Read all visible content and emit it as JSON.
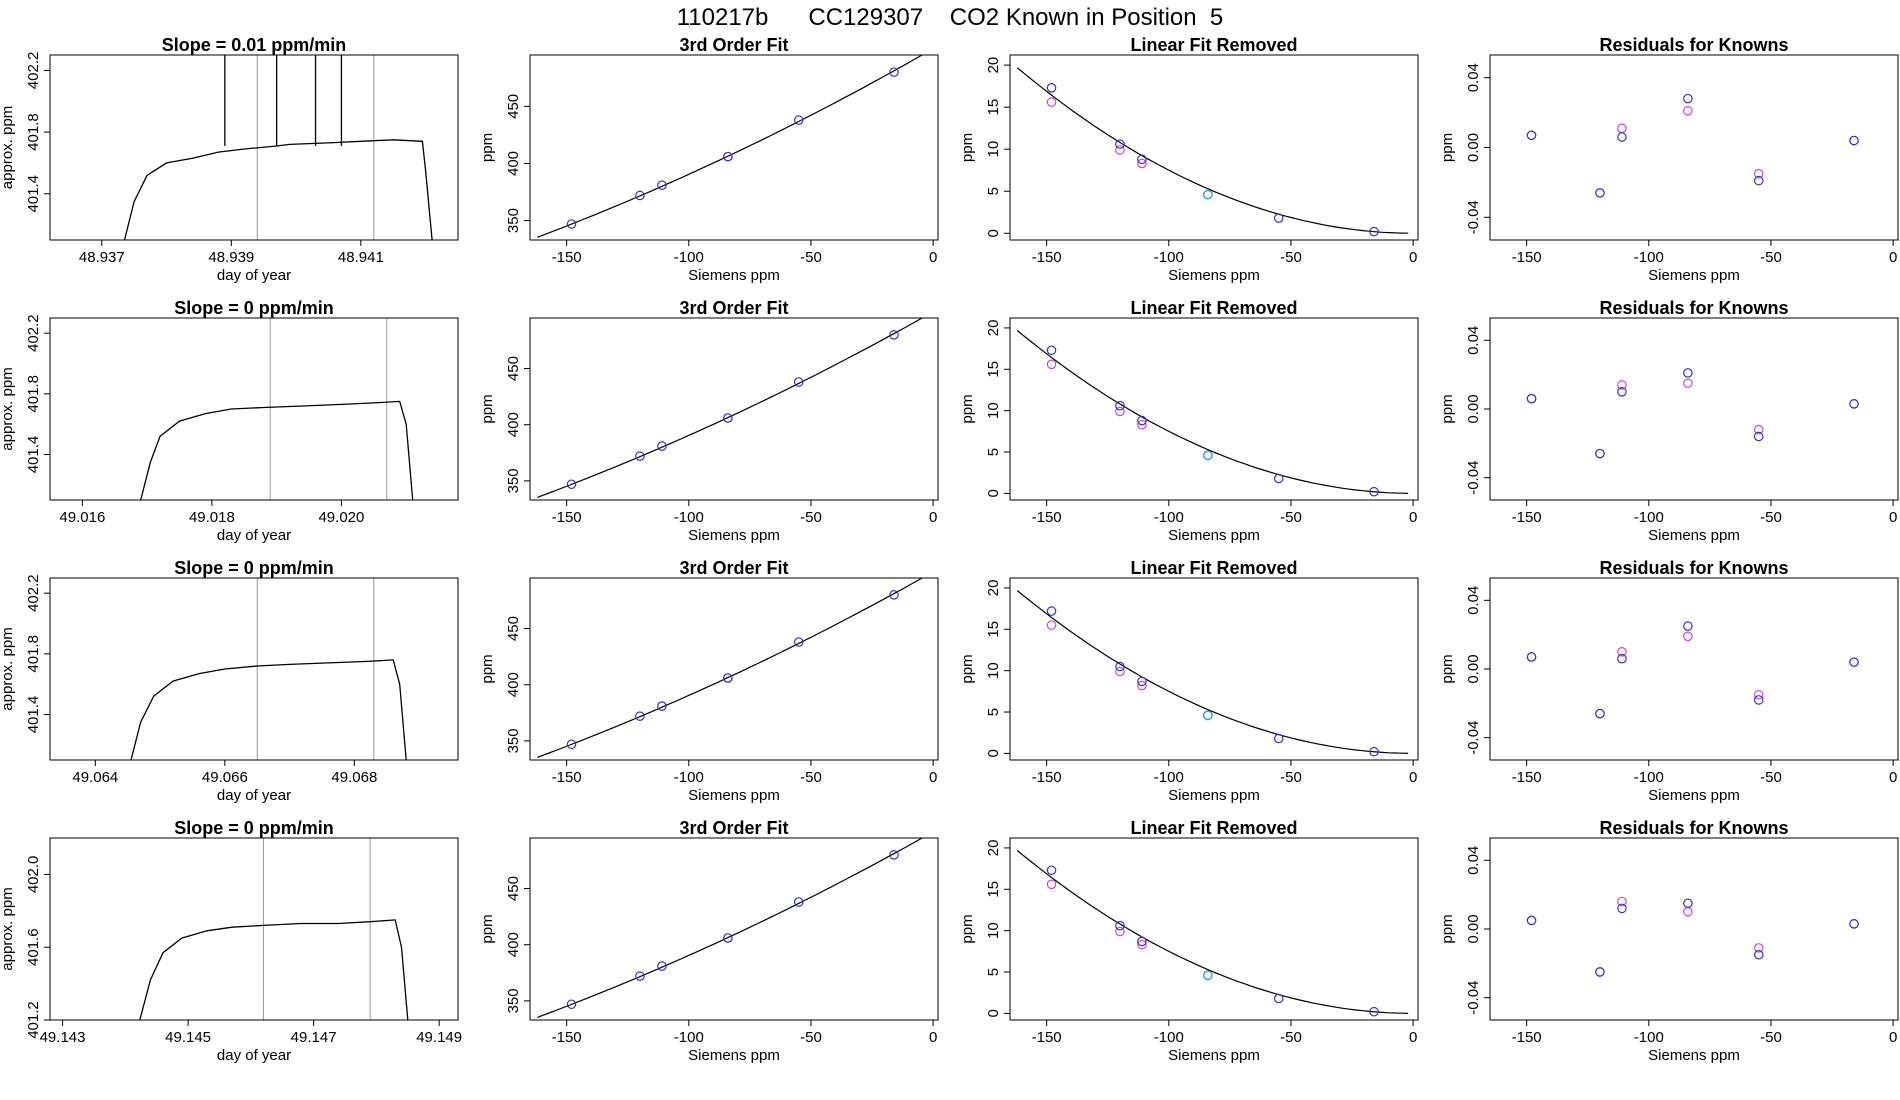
{
  "header": {
    "title": "110217b      CC129307    CO2 Known in Position  5"
  },
  "colors": {
    "known_fit": "#3333cc",
    "known_alt": "#cc44dd",
    "highlight": "#33aadd",
    "ref": "#999999",
    "trace": "#000000",
    "spike": "#cc2222"
  },
  "chart_data": [
    {
      "type": "line",
      "row": 1,
      "panel": "time",
      "title": "Slope =  0.01  ppm/min",
      "xlabel": "day of year",
      "ylabel": "approx. ppm",
      "xlim": [
        48.9362,
        48.9425
      ],
      "ylim": [
        401.1,
        402.3
      ],
      "xticks": [
        48.937,
        48.939,
        48.941
      ],
      "xtick_labels": [
        "48.937",
        "48.939",
        "48.941"
      ],
      "yticks": [
        401.4,
        401.8,
        402.2
      ],
      "ytick_labels": [
        "401.4",
        "401.8",
        "402.2"
      ],
      "vlines": [
        48.9394,
        48.9412
      ],
      "series": [
        {
          "name": "approx ppm",
          "x": [
            48.93735,
            48.9375,
            48.9377,
            48.938,
            48.9384,
            48.9388,
            48.9392,
            48.9397,
            48.9399,
            48.9405,
            48.941,
            48.9415,
            48.94195,
            48.942,
            48.9421
          ],
          "y": [
            401.1,
            401.35,
            401.52,
            401.6,
            401.63,
            401.67,
            401.69,
            401.71,
            401.72,
            401.73,
            401.74,
            401.75,
            401.74,
            401.55,
            401.1
          ]
        }
      ],
      "spikes": [
        48.9389,
        48.9397,
        48.9403,
        48.9407
      ]
    },
    {
      "type": "line",
      "row": 2,
      "panel": "time",
      "title": "Slope =  0  ppm/min",
      "xlabel": "day of year",
      "ylabel": "approx. ppm",
      "xlim": [
        49.0155,
        49.0218
      ],
      "ylim": [
        401.1,
        402.3
      ],
      "xticks": [
        49.016,
        49.018,
        49.02
      ],
      "xtick_labels": [
        "49.016",
        "49.018",
        "49.020"
      ],
      "yticks": [
        401.4,
        401.8,
        402.2
      ],
      "ytick_labels": [
        "401.4",
        "401.8",
        "402.2"
      ],
      "vlines": [
        49.0189,
        49.0207
      ],
      "series": [
        {
          "name": "approx ppm",
          "x": [
            49.0169,
            49.01705,
            49.0172,
            49.0175,
            49.0179,
            49.0183,
            49.0188,
            49.0194,
            49.02,
            49.0205,
            49.0209,
            49.021,
            49.0211
          ],
          "y": [
            401.1,
            401.35,
            401.52,
            401.62,
            401.67,
            401.7,
            401.71,
            401.72,
            401.73,
            401.74,
            401.75,
            401.6,
            401.1
          ]
        }
      ],
      "spikes": []
    },
    {
      "type": "line",
      "row": 3,
      "panel": "time",
      "title": "Slope =  0  ppm/min",
      "xlabel": "day of year",
      "ylabel": "approx. ppm",
      "xlim": [
        49.0633,
        49.0696
      ],
      "ylim": [
        401.1,
        402.3
      ],
      "xticks": [
        49.064,
        49.066,
        49.068
      ],
      "xtick_labels": [
        "49.064",
        "49.066",
        "49.068"
      ],
      "yticks": [
        401.4,
        401.8,
        402.2
      ],
      "ytick_labels": [
        "401.4",
        "401.8",
        "402.2"
      ],
      "vlines": [
        49.0665,
        49.0683
      ],
      "series": [
        {
          "name": "approx ppm",
          "x": [
            49.06455,
            49.0647,
            49.0649,
            49.0652,
            49.0656,
            49.066,
            49.0665,
            49.067,
            49.0676,
            49.0682,
            49.0686,
            49.0687,
            49.0688
          ],
          "y": [
            401.1,
            401.35,
            401.52,
            401.62,
            401.67,
            401.7,
            401.72,
            401.73,
            401.74,
            401.75,
            401.76,
            401.6,
            401.1
          ]
        }
      ],
      "spikes": []
    },
    {
      "type": "line",
      "row": 4,
      "panel": "time",
      "title": "Slope =  0  ppm/min",
      "xlabel": "day of year",
      "ylabel": "approx. ppm",
      "xlim": [
        49.1428,
        49.1493
      ],
      "ylim": [
        401.2,
        402.2
      ],
      "xticks": [
        49.143,
        49.145,
        49.147,
        49.149
      ],
      "xtick_labels": [
        "49.143",
        "49.145",
        "49.147",
        "49.149"
      ],
      "yticks": [
        401.2,
        401.6,
        402.0
      ],
      "ytick_labels": [
        "401.2",
        "401.6",
        "402.0"
      ],
      "vlines": [
        49.1462,
        49.1479
      ],
      "series": [
        {
          "name": "approx ppm",
          "x": [
            49.14423,
            49.1444,
            49.1446,
            49.1449,
            49.1453,
            49.1457,
            49.1462,
            49.1468,
            49.1474,
            49.1479,
            49.1483,
            49.1484,
            49.1485
          ],
          "y": [
            401.2,
            401.42,
            401.57,
            401.65,
            401.69,
            401.71,
            401.72,
            401.73,
            401.73,
            401.74,
            401.75,
            401.6,
            401.2
          ]
        }
      ],
      "spikes": []
    },
    {
      "type": "scatter",
      "row": 1,
      "panel": "fit",
      "title": "3rd Order Fit",
      "xlabel": "Siemens ppm",
      "ylabel": "ppm",
      "xlim": [
        -165,
        2
      ],
      "ylim": [
        333,
        495
      ],
      "xticks": [
        -150,
        -100,
        -50,
        0
      ],
      "xtick_labels": [
        "-150",
        "-100",
        "-50",
        "0"
      ],
      "yticks": [
        350,
        400,
        450
      ],
      "ytick_labels": [
        "350",
        "400",
        "450"
      ],
      "points": {
        "x": [
          -148,
          -120,
          -111,
          -84,
          -55,
          -16
        ],
        "y": [
          347,
          372,
          381,
          406,
          438,
          480
        ]
      },
      "alt_points": {
        "x": [
          -84
        ],
        "y": [
          406
        ]
      },
      "curve": {
        "x0": -162,
        "x1": -2,
        "a": 500.5,
        "b": 1.23,
        "c": 0.0013
      }
    },
    {
      "type": "scatter",
      "row": 2,
      "panel": "fit",
      "title": "3rd Order Fit",
      "xlabel": "Siemens ppm",
      "ylabel": "ppm",
      "xlim": [
        -165,
        2
      ],
      "ylim": [
        333,
        495
      ],
      "xticks": [
        -150,
        -100,
        -50,
        0
      ],
      "xtick_labels": [
        "-150",
        "-100",
        "-50",
        "0"
      ],
      "yticks": [
        350,
        400,
        450
      ],
      "ytick_labels": [
        "350",
        "400",
        "450"
      ],
      "points": {
        "x": [
          -148,
          -120,
          -111,
          -84,
          -55,
          -16
        ],
        "y": [
          347,
          372,
          381,
          406,
          438,
          480
        ]
      },
      "alt_points": {
        "x": [
          -84
        ],
        "y": [
          406
        ]
      },
      "curve": {
        "x0": -162,
        "x1": -2,
        "a": 500.5,
        "b": 1.23,
        "c": 0.0013
      }
    },
    {
      "type": "scatter",
      "row": 3,
      "panel": "fit",
      "title": "3rd Order Fit",
      "xlabel": "Siemens ppm",
      "ylabel": "ppm",
      "xlim": [
        -165,
        2
      ],
      "ylim": [
        333,
        495
      ],
      "xticks": [
        -150,
        -100,
        -50,
        0
      ],
      "xtick_labels": [
        "-150",
        "-100",
        "-50",
        "0"
      ],
      "yticks": [
        350,
        400,
        450
      ],
      "ytick_labels": [
        "350",
        "400",
        "450"
      ],
      "points": {
        "x": [
          -148,
          -120,
          -111,
          -84,
          -55,
          -16
        ],
        "y": [
          347,
          372,
          381,
          406,
          438,
          480
        ]
      },
      "alt_points": {
        "x": [
          -84
        ],
        "y": [
          406
        ]
      },
      "curve": {
        "x0": -162,
        "x1": -2,
        "a": 500.5,
        "b": 1.23,
        "c": 0.0013
      }
    },
    {
      "type": "scatter",
      "row": 4,
      "panel": "fit",
      "title": "3rd Order Fit",
      "xlabel": "Siemens ppm",
      "ylabel": "ppm",
      "xlim": [
        -165,
        2
      ],
      "ylim": [
        333,
        495
      ],
      "xticks": [
        -150,
        -100,
        -50,
        0
      ],
      "xtick_labels": [
        "-150",
        "-100",
        "-50",
        "0"
      ],
      "yticks": [
        350,
        400,
        450
      ],
      "ytick_labels": [
        "350",
        "400",
        "450"
      ],
      "points": {
        "x": [
          -148,
          -120,
          -111,
          -84,
          -55,
          -16
        ],
        "y": [
          347,
          372,
          381,
          406,
          438,
          480
        ]
      },
      "alt_points": {
        "x": [
          -84
        ],
        "y": [
          406
        ]
      },
      "curve": {
        "x0": -162,
        "x1": -2,
        "a": 500.5,
        "b": 1.23,
        "c": 0.0013
      }
    },
    {
      "type": "scatter",
      "row": 1,
      "panel": "linear",
      "title": "Linear Fit Removed",
      "xlabel": "Siemens ppm",
      "ylabel": "ppm",
      "xlim": [
        -165,
        2
      ],
      "ylim": [
        -0.8,
        21.2
      ],
      "xticks": [
        -150,
        -100,
        -50,
        0
      ],
      "xtick_labels": [
        "-150",
        "-100",
        "-50",
        "0"
      ],
      "yticks": [
        0,
        5,
        10,
        15,
        20
      ],
      "ytick_labels": [
        "0",
        "5",
        "10",
        "15",
        "20"
      ],
      "points": {
        "x": [
          -148,
          -120,
          -111,
          -84,
          -55,
          -16
        ],
        "y": [
          17.3,
          10.6,
          8.8,
          4.6,
          1.8,
          0.2
        ]
      },
      "alt_points": {
        "x": [
          -148,
          -120,
          -111
        ],
        "y": [
          15.6,
          9.9,
          8.3
        ]
      },
      "highlight_point": {
        "x": -84,
        "y": 4.6
      },
      "curve": {
        "x0": -162,
        "x1": -2,
        "a": 0,
        "b": 0.0052,
        "c": 5.5e-06
      }
    },
    {
      "type": "scatter",
      "row": 2,
      "panel": "linear",
      "title": "Linear Fit Removed",
      "xlabel": "Siemens ppm",
      "ylabel": "ppm",
      "xlim": [
        -165,
        2
      ],
      "ylim": [
        -0.8,
        21.2
      ],
      "xticks": [
        -150,
        -100,
        -50,
        0
      ],
      "xtick_labels": [
        "-150",
        "-100",
        "-50",
        "0"
      ],
      "yticks": [
        0,
        5,
        10,
        15,
        20
      ],
      "ytick_labels": [
        "0",
        "5",
        "10",
        "15",
        "20"
      ],
      "points": {
        "x": [
          -148,
          -120,
          -111,
          -84,
          -55,
          -16
        ],
        "y": [
          17.3,
          10.6,
          8.8,
          4.6,
          1.8,
          0.2
        ]
      },
      "alt_points": {
        "x": [
          -148,
          -120,
          -111
        ],
        "y": [
          15.6,
          9.9,
          8.3
        ]
      },
      "highlight_point": {
        "x": -84,
        "y": 4.6
      },
      "curve": {
        "x0": -162,
        "x1": -2,
        "a": 0,
        "b": 0.0052,
        "c": 5.5e-06
      }
    },
    {
      "type": "scatter",
      "row": 3,
      "panel": "linear",
      "title": "Linear Fit Removed",
      "xlabel": "Siemens ppm",
      "ylabel": "ppm",
      "xlim": [
        -165,
        2
      ],
      "ylim": [
        -0.8,
        21.2
      ],
      "xticks": [
        -150,
        -100,
        -50,
        0
      ],
      "xtick_labels": [
        "-150",
        "-100",
        "-50",
        "0"
      ],
      "yticks": [
        0,
        5,
        10,
        15,
        20
      ],
      "ytick_labels": [
        "0",
        "5",
        "10",
        "15",
        "20"
      ],
      "points": {
        "x": [
          -148,
          -120,
          -111,
          -84,
          -55,
          -16
        ],
        "y": [
          17.2,
          10.5,
          8.7,
          4.6,
          1.8,
          0.2
        ]
      },
      "alt_points": {
        "x": [
          -148,
          -120,
          -111
        ],
        "y": [
          15.5,
          9.9,
          8.2
        ]
      },
      "highlight_point": {
        "x": -84,
        "y": 4.6
      },
      "curve": {
        "x0": -162,
        "x1": -2,
        "a": 0,
        "b": 0.0052,
        "c": 5.5e-06
      }
    },
    {
      "type": "scatter",
      "row": 4,
      "panel": "linear",
      "title": "Linear Fit Removed",
      "xlabel": "Siemens ppm",
      "ylabel": "ppm",
      "xlim": [
        -165,
        2
      ],
      "ylim": [
        -0.8,
        21.2
      ],
      "xticks": [
        -150,
        -100,
        -50,
        0
      ],
      "xtick_labels": [
        "-150",
        "-100",
        "-50",
        "0"
      ],
      "yticks": [
        0,
        5,
        10,
        15,
        20
      ],
      "ytick_labels": [
        "0",
        "5",
        "10",
        "15",
        "20"
      ],
      "points": {
        "x": [
          -148,
          -120,
          -111,
          -84,
          -55,
          -16
        ],
        "y": [
          17.3,
          10.6,
          8.7,
          4.6,
          1.8,
          0.2
        ]
      },
      "alt_points": {
        "x": [
          -148,
          -120,
          -111
        ],
        "y": [
          15.6,
          9.9,
          8.3
        ]
      },
      "highlight_point": {
        "x": -84,
        "y": 4.6
      },
      "curve": {
        "x0": -162,
        "x1": -2,
        "a": 0,
        "b": 0.0052,
        "c": 5.5e-06
      }
    },
    {
      "type": "scatter",
      "row": 1,
      "panel": "residuals",
      "title": "Residuals for Knowns",
      "xlabel": "Siemens ppm",
      "ylabel": "ppm",
      "xlim": [
        -165,
        2
      ],
      "ylim": [
        -0.053,
        0.053
      ],
      "xticks": [
        -150,
        -100,
        -50,
        0
      ],
      "xtick_labels": [
        "-150",
        "-100",
        "-50",
        "0"
      ],
      "yticks": [
        -0.04,
        0.0,
        0.04
      ],
      "ytick_labels": [
        "-0.04",
        "0.00",
        "0.04"
      ],
      "points": {
        "x": [
          -148,
          -120,
          -111,
          -84,
          -55,
          -16
        ],
        "y": [
          0.007,
          -0.026,
          0.006,
          0.028,
          -0.019,
          0.004
        ]
      },
      "alt_points": {
        "x": [
          -148,
          -120,
          -111,
          -84,
          -55,
          -16
        ],
        "y": [
          0.007,
          -0.026,
          0.011,
          0.021,
          -0.015,
          0.004
        ]
      }
    },
    {
      "type": "scatter",
      "row": 2,
      "panel": "residuals",
      "title": "Residuals for Knowns",
      "xlabel": "Siemens ppm",
      "ylabel": "ppm",
      "xlim": [
        -165,
        2
      ],
      "ylim": [
        -0.053,
        0.053
      ],
      "xticks": [
        -150,
        -100,
        -50,
        0
      ],
      "xtick_labels": [
        "-150",
        "-100",
        "-50",
        "0"
      ],
      "yticks": [
        -0.04,
        0.0,
        0.04
      ],
      "ytick_labels": [
        "-0.04",
        "0.00",
        "0.04"
      ],
      "points": {
        "x": [
          -148,
          -120,
          -111,
          -84,
          -55,
          -16
        ],
        "y": [
          0.006,
          -0.026,
          0.01,
          0.021,
          -0.016,
          0.003
        ]
      },
      "alt_points": {
        "x": [
          -148,
          -120,
          -111,
          -84,
          -55,
          -16
        ],
        "y": [
          0.006,
          -0.026,
          0.014,
          0.015,
          -0.012,
          0.003
        ]
      }
    },
    {
      "type": "scatter",
      "row": 3,
      "panel": "residuals",
      "title": "Residuals for Knowns",
      "xlabel": "Siemens ppm",
      "ylabel": "ppm",
      "xlim": [
        -165,
        2
      ],
      "ylim": [
        -0.053,
        0.053
      ],
      "xticks": [
        -150,
        -100,
        -50,
        0
      ],
      "xtick_labels": [
        "-150",
        "-100",
        "-50",
        "0"
      ],
      "yticks": [
        -0.04,
        0.0,
        0.04
      ],
      "ytick_labels": [
        "-0.04",
        "0.00",
        "0.04"
      ],
      "points": {
        "x": [
          -148,
          -120,
          -111,
          -84,
          -55,
          -16
        ],
        "y": [
          0.007,
          -0.026,
          0.006,
          0.025,
          -0.018,
          0.004
        ]
      },
      "alt_points": {
        "x": [
          -148,
          -120,
          -111,
          -84,
          -55,
          -16
        ],
        "y": [
          0.007,
          -0.026,
          0.01,
          0.019,
          -0.015,
          0.004
        ]
      }
    },
    {
      "type": "scatter",
      "row": 4,
      "panel": "residuals",
      "title": "Residuals for Knowns",
      "xlabel": "Siemens ppm",
      "ylabel": "ppm",
      "xlim": [
        -165,
        2
      ],
      "ylim": [
        -0.053,
        0.053
      ],
      "xticks": [
        -150,
        -100,
        -50,
        0
      ],
      "xtick_labels": [
        "-150",
        "-100",
        "-50",
        "0"
      ],
      "yticks": [
        -0.04,
        0.0,
        0.04
      ],
      "ytick_labels": [
        "-0.04",
        "0.00",
        "0.04"
      ],
      "points": {
        "x": [
          -148,
          -120,
          -111,
          -84,
          -55,
          -16
        ],
        "y": [
          0.005,
          -0.025,
          0.012,
          0.015,
          -0.015,
          0.003
        ]
      },
      "alt_points": {
        "x": [
          -148,
          -120,
          -111,
          -84,
          -55,
          -16
        ],
        "y": [
          0.005,
          -0.025,
          0.016,
          0.01,
          -0.011,
          0.003
        ]
      }
    }
  ]
}
